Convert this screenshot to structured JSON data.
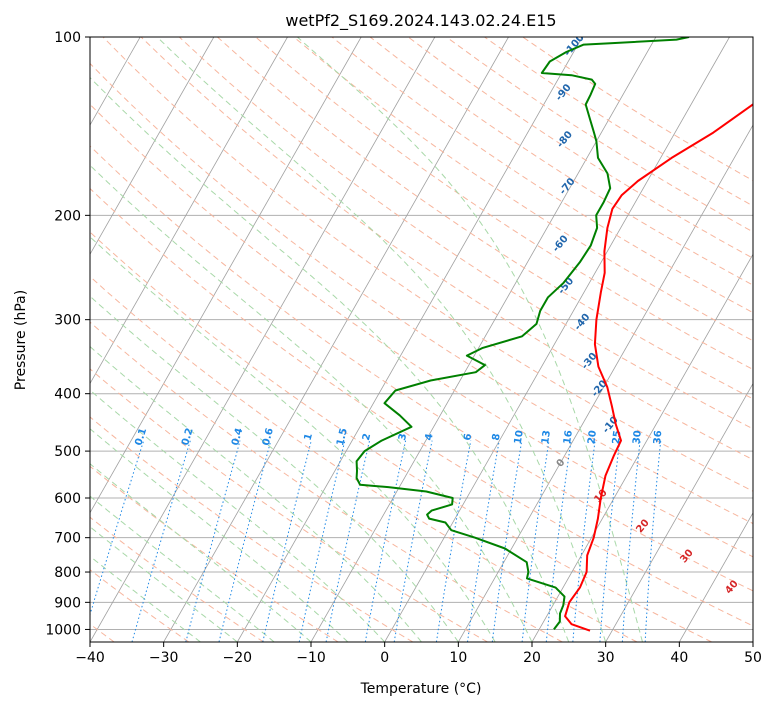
{
  "chart_data": {
    "type": "line",
    "title": "wetPf2_S169.2024.143.02.24.E15",
    "xlabel": "Temperature (°C)",
    "ylabel": "Pressure (hPa)",
    "xlim": [
      -40,
      50
    ],
    "ylim": [
      1050,
      100
    ],
    "y_scale": "log",
    "x_ticks": [
      "−40",
      "−30",
      "−20",
      "−10",
      "0",
      "10",
      "20",
      "30",
      "40",
      "50"
    ],
    "y_ticks": [
      1000,
      900,
      800,
      700,
      600,
      500,
      400,
      300,
      200,
      100
    ],
    "grid": true,
    "series": [
      {
        "color": "#ff0000",
        "points": [
          [
            27,
            1005
          ],
          [
            24,
            980
          ],
          [
            22.5,
            950
          ],
          [
            22,
            900
          ],
          [
            22.3,
            850
          ],
          [
            22,
            800
          ],
          [
            20.8,
            750
          ],
          [
            20.3,
            700
          ],
          [
            19.4,
            650
          ],
          [
            18.2,
            600
          ],
          [
            17.1,
            550
          ],
          [
            16.7,
            510
          ],
          [
            16.5,
            480
          ],
          [
            14.5,
            450
          ],
          [
            12.6,
            420
          ],
          [
            10.5,
            390
          ],
          [
            7.7,
            360
          ],
          [
            5.5,
            330
          ],
          [
            3.8,
            300
          ],
          [
            2.3,
            270
          ],
          [
            1.3,
            250
          ],
          [
            -0.4,
            230
          ],
          [
            -1.8,
            210
          ],
          [
            -2.6,
            195
          ],
          [
            -2.4,
            185
          ],
          [
            -1.3,
            175
          ],
          [
            1.5,
            160
          ],
          [
            5.2,
            145
          ],
          [
            8.4,
            130
          ],
          [
            10.3,
            120
          ],
          [
            11.1,
            115
          ],
          [
            12.2,
            108
          ],
          [
            12.5,
            104
          ],
          [
            12.3,
            100
          ]
        ]
      },
      {
        "color": "#008000",
        "points": [
          [
            22,
            1000
          ],
          [
            22.2,
            970
          ],
          [
            21.6,
            940
          ],
          [
            21.4,
            910
          ],
          [
            20.9,
            880
          ],
          [
            19,
            850
          ],
          [
            14.4,
            820
          ],
          [
            14.1,
            800
          ],
          [
            13.1,
            770
          ],
          [
            9.1,
            730
          ],
          [
            4.2,
            700
          ],
          [
            0.4,
            680
          ],
          [
            -1,
            660
          ],
          [
            -3.5,
            650
          ],
          [
            -4.1,
            640
          ],
          [
            -3.8,
            630
          ],
          [
            -1.5,
            615
          ],
          [
            -1.9,
            600
          ],
          [
            -6,
            585
          ],
          [
            -11.5,
            575
          ],
          [
            -15.5,
            570
          ],
          [
            -16.5,
            555
          ],
          [
            -17,
            540
          ],
          [
            -17.8,
            520
          ],
          [
            -17.5,
            500
          ],
          [
            -16,
            480
          ],
          [
            -13,
            455
          ],
          [
            -15.5,
            435
          ],
          [
            -18.5,
            415
          ],
          [
            -18,
            395
          ],
          [
            -14,
            380
          ],
          [
            -8.5,
            368
          ],
          [
            -7.8,
            358
          ],
          [
            -11,
            345
          ],
          [
            -9.5,
            335
          ],
          [
            -5,
            320
          ],
          [
            -4,
            305
          ],
          [
            -4.5,
            290
          ],
          [
            -4.5,
            275
          ],
          [
            -3.5,
            260
          ],
          [
            -2.9,
            240
          ],
          [
            -2.7,
            225
          ],
          [
            -3.2,
            210
          ],
          [
            -4.3,
            200
          ],
          [
            -4.3,
            190
          ],
          [
            -4.5,
            180
          ],
          [
            -6,
            170
          ],
          [
            -8.5,
            160
          ],
          [
            -10,
            150
          ],
          [
            -11,
            145
          ],
          [
            -12.5,
            138
          ],
          [
            -14.3,
            130
          ],
          [
            -14.4,
            125
          ],
          [
            -14.6,
            120
          ],
          [
            -15.4,
            118
          ],
          [
            -18.5,
            116
          ],
          [
            -22.7,
            115
          ],
          [
            -22.5,
            110
          ],
          [
            -21,
            106
          ],
          [
            -19.2,
            103
          ],
          [
            -16,
            102.5
          ],
          [
            -7,
            101
          ],
          [
            -5.5,
            100
          ]
        ]
      }
    ],
    "background_line_labels": {
      "dry_adiabats_blue": [
        "-100",
        "-90",
        "-80",
        "-70",
        "-60",
        "-50",
        "-40",
        "-30",
        "-20",
        "-10"
      ],
      "mixing_ratio": [
        "0.1",
        "0.2",
        "0.4",
        "0.6",
        "1",
        "1.5",
        "2",
        "3",
        "4",
        "6",
        "8",
        "10",
        "13",
        "16",
        "20",
        "25",
        "30",
        "36"
      ],
      "moist_adiabats_grey": [
        "0"
      ],
      "moist_adiabats_red": [
        "10",
        "20",
        "30",
        "40"
      ]
    },
    "colors": {
      "temperature": "#ff0000",
      "dewpoint": "#008000",
      "mixing_ratio": "#1e88e5",
      "dry_adiabat_label": "#2166ac",
      "moist_label_red": "#d62728",
      "isotherm_grid": "#a0a0a0",
      "dry_adiabat_line": "#f7b69e",
      "moist_adiabat_line": "#a8d8a8"
    }
  }
}
